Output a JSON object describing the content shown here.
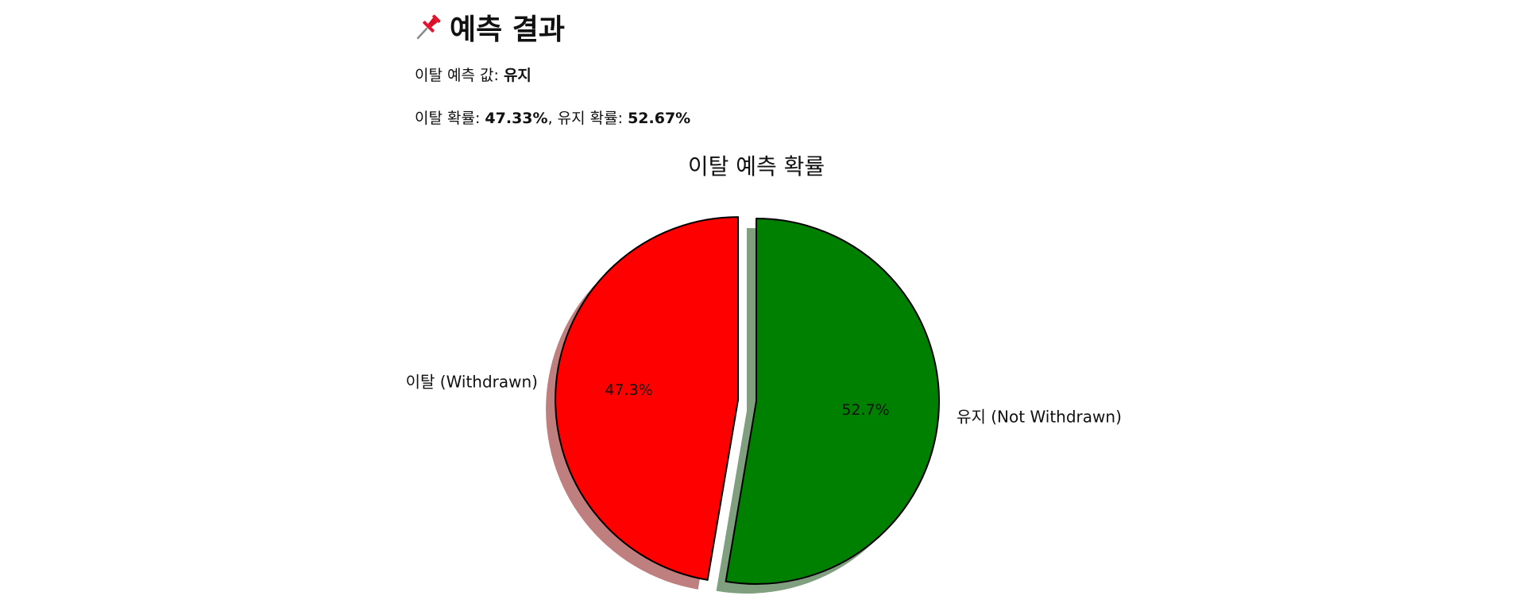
{
  "header": {
    "pin_icon": "pushpin-icon",
    "title": "예측 결과"
  },
  "prediction": {
    "label": "이탈 예측 값",
    "value": "유지"
  },
  "probabilities": {
    "churn_label": "이탈 확률",
    "churn_value": "47.33%",
    "retain_label": "유지 확률",
    "retain_value": "52.67%"
  },
  "chart_data": {
    "type": "pie",
    "title": "이탈 예측 확률",
    "labels": [
      "이탈 (Withdrawn)",
      "유지 (Not Withdrawn)"
    ],
    "values": [
      47.33,
      52.67
    ],
    "value_labels": [
      "47.3%",
      "52.7%"
    ],
    "colors": [
      "#ff0000",
      "#008000"
    ],
    "explode": [
      0.1,
      0
    ],
    "shadow": true,
    "start": "top, counter-clockwise"
  }
}
